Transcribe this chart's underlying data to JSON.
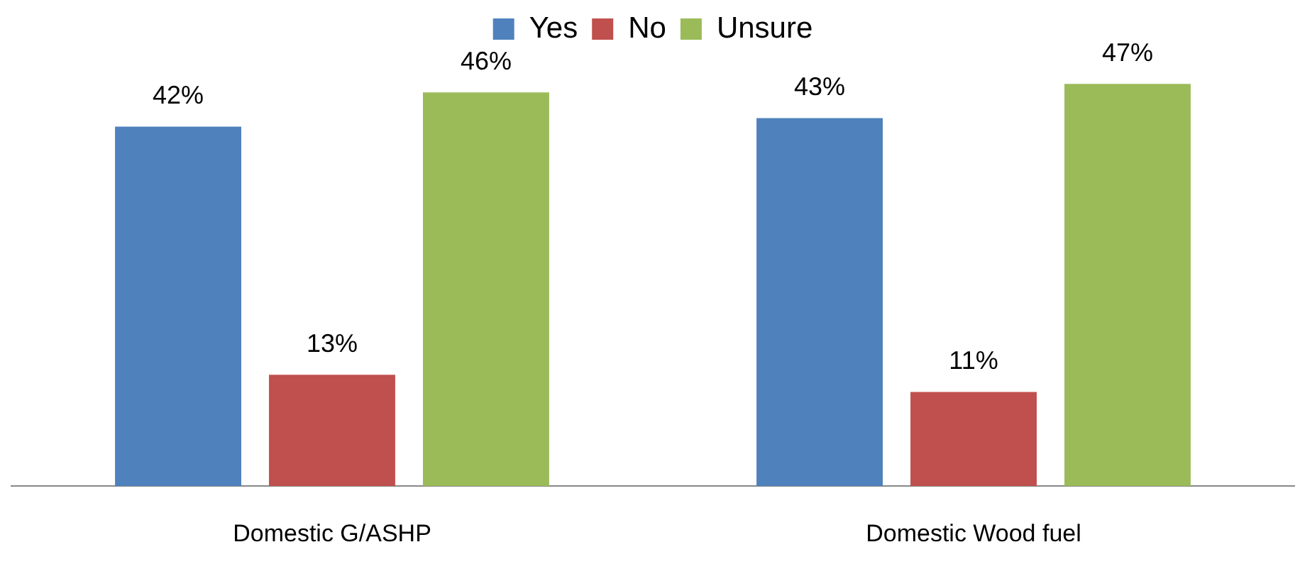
{
  "chart_data": {
    "type": "bar",
    "categories": [
      "Domestic G/ASHP",
      "Domestic Wood fuel"
    ],
    "series": [
      {
        "name": "Yes",
        "color": "#4f81bd",
        "values": [
          42,
          43
        ],
        "value_labels": [
          "42%",
          "43%"
        ]
      },
      {
        "name": "No",
        "color": "#c0504d",
        "values": [
          13,
          11
        ],
        "value_labels": [
          "13%",
          "11%"
        ]
      },
      {
        "name": "Unsure",
        "color": "#9bbb59",
        "values": [
          46,
          47
        ],
        "value_labels": [
          "46%",
          "47%"
        ]
      }
    ],
    "legend": "top",
    "grid": false,
    "tick_labels": "x"
  }
}
